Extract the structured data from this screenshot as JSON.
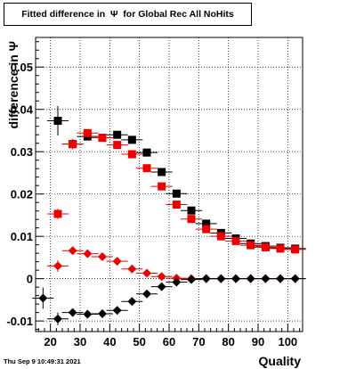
{
  "header": {
    "title": "Fitted difference in  Ψ  for Global Rec All NoHits",
    "timestamp": "Thu Sep  9 10:49:31 2021"
  },
  "chart_data": {
    "type": "scatter",
    "xlabel": "Quality",
    "ylabel": "difference in  Ψ",
    "xlim": [
      15,
      105
    ],
    "ylim": [
      -0.0125,
      0.057
    ],
    "x_ticks": [
      20,
      30,
      40,
      50,
      60,
      70,
      80,
      90,
      100
    ],
    "y_ticks": [
      -0.01,
      0,
      0.01,
      0.02,
      0.03,
      0.04,
      0.05
    ],
    "y_tick_labels": [
      "-0.01",
      "0",
      "0.01",
      "0.02",
      "0.03",
      "0.04",
      "0.05"
    ],
    "grid": true,
    "series": [
      {
        "marker": "square",
        "color": "#000000",
        "x": [
          22.5,
          27.5,
          32.5,
          37.5,
          42.5,
          47.5,
          52.5,
          57.5,
          62.5,
          67.5,
          72.5,
          77.5,
          82.5,
          87.5,
          92.5,
          97.5,
          102.5
        ],
        "y": [
          0.0373,
          0.0318,
          0.0336,
          0.0333,
          0.034,
          0.0328,
          0.0298,
          0.0252,
          0.0201,
          0.0161,
          0.013,
          0.0108,
          0.0095,
          0.0083,
          0.0077,
          0.0073,
          0.0071
        ],
        "yerr": [
          0.0035,
          0.0012,
          0.0006,
          0.0005,
          0.0004,
          0.0004,
          0.0004,
          0.0004,
          0.0004,
          0.0004,
          0.0003,
          0.0003,
          0.0003,
          0.0003,
          0.0003,
          0.0003,
          0.0003
        ]
      },
      {
        "marker": "square",
        "color": "#ee0000",
        "x": [
          22.5,
          27.5,
          32.5,
          37.5,
          42.5,
          47.5,
          52.5,
          57.5,
          62.5,
          67.5,
          72.5,
          77.5,
          82.5,
          87.5,
          92.5,
          97.5,
          102.5
        ],
        "y": [
          0.0153,
          0.0318,
          0.0344,
          0.0333,
          0.0316,
          0.0294,
          0.0261,
          0.0218,
          0.0175,
          0.0141,
          0.0117,
          0.01,
          0.0089,
          0.0079,
          0.0074,
          0.0071,
          0.0069
        ],
        "yerr": [
          0.0012,
          0.001,
          0.0006,
          0.0005,
          0.0004,
          0.0004,
          0.0004,
          0.0004,
          0.0004,
          0.0004,
          0.0003,
          0.0003,
          0.0003,
          0.0003,
          0.0003,
          0.0003,
          0.0003
        ]
      },
      {
        "marker": "diamond",
        "color": "#ee0000",
        "x": [
          22.5,
          27.5,
          32.5,
          37.5,
          42.5,
          47.5,
          52.5,
          57.5,
          62.5,
          67.5,
          72.5,
          77.5,
          82.5,
          87.5,
          92.5,
          97.5,
          102.5
        ],
        "y": [
          0.003,
          0.0066,
          0.0059,
          0.0052,
          0.0041,
          0.0023,
          0.0013,
          0.0005,
          0.0001,
          0.0,
          0.0,
          0.0,
          0.0,
          0.0,
          0.0,
          0.0,
          0.0
        ],
        "yerr": [
          0.0014,
          0.0007,
          0.0004,
          0.0004,
          0.0004,
          0.0003,
          0.0003,
          0.0003,
          0.0003,
          0.0003,
          0.0003,
          0.0003,
          0.0003,
          0.0003,
          0.0003,
          0.0003,
          0.0003
        ]
      },
      {
        "marker": "diamond",
        "color": "#000000",
        "x": [
          17.5,
          22.5,
          27.5,
          32.5,
          37.5,
          42.5,
          47.5,
          52.5,
          57.5,
          62.5,
          67.5,
          72.5,
          77.5,
          82.5,
          87.5,
          92.5,
          97.5,
          102.5
        ],
        "y": [
          -0.0046,
          -0.0095,
          -0.008,
          -0.0084,
          -0.0083,
          -0.0075,
          -0.0054,
          -0.0036,
          -0.0019,
          -0.0008,
          -0.0002,
          0.0,
          0.0,
          0.0,
          0.0,
          0.0,
          0.0,
          0.0
        ],
        "yerr": [
          0.0025,
          0.0015,
          0.0007,
          0.0005,
          0.0005,
          0.0004,
          0.0004,
          0.0004,
          0.0003,
          0.0003,
          0.0003,
          0.0003,
          0.0003,
          0.0003,
          0.0003,
          0.0003,
          0.0003,
          0.0003
        ]
      }
    ]
  }
}
